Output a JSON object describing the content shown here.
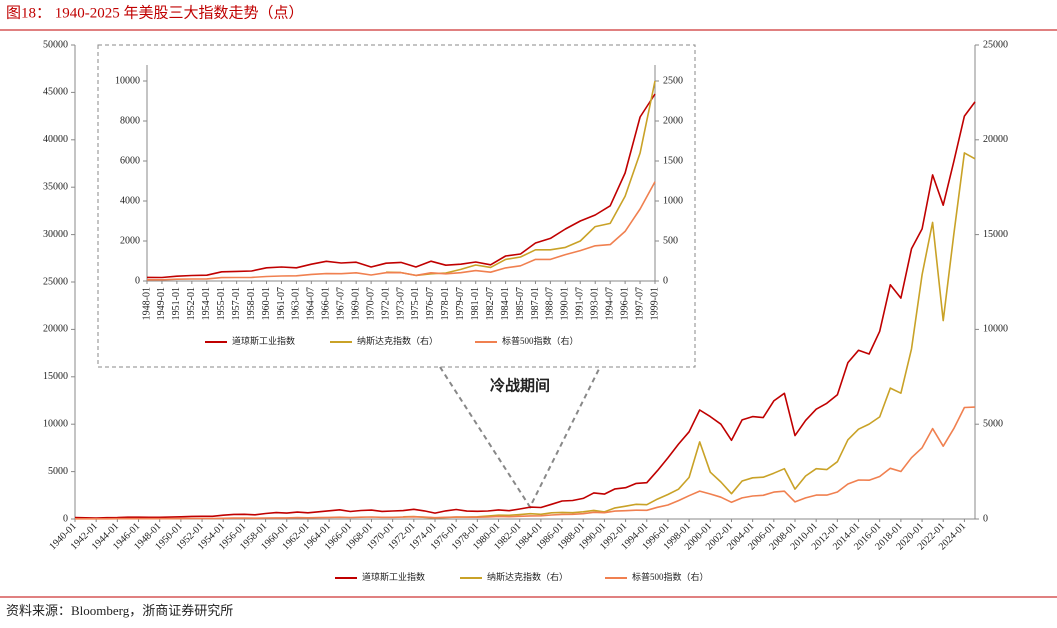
{
  "title": "图18： 1940-2025 年美股三大指数走势（点）",
  "source": "资料来源：Bloomberg，浙商证券研究所",
  "chart_data": [
    {
      "type": "line",
      "categories": [
        "1940-01",
        null,
        "1942-01",
        null,
        "1944-01",
        null,
        "1946-01",
        null,
        "1948-01",
        null,
        "1950-01",
        null,
        "1952-01",
        null,
        "1954-01",
        null,
        "1956-01",
        null,
        "1958-01",
        null,
        "1960-01",
        null,
        "1962-01",
        null,
        "1964-01",
        null,
        "1966-01",
        null,
        "1968-01",
        null,
        "1970-01",
        null,
        "1972-01",
        null,
        "1974-01",
        null,
        "1976-01",
        null,
        "1978-01",
        null,
        "1980-01",
        null,
        "1982-01",
        null,
        "1984-01",
        null,
        "1986-01",
        null,
        "1988-01",
        null,
        "1990-01",
        null,
        "1992-01",
        null,
        "1994-01",
        null,
        "1996-01",
        null,
        "1998-01",
        null,
        "2000-01",
        null,
        "2002-01",
        null,
        "2004-01",
        null,
        "2006-01",
        null,
        "2008-01",
        null,
        "2010-01",
        null,
        "2012-01",
        null,
        "2014-01",
        null,
        "2016-01",
        null,
        "2018-01",
        null,
        "2020-01",
        null,
        "2022-01",
        null,
        "2024-01",
        null
      ],
      "series": [
        {
          "name": "道琼斯工业指数",
          "color": "#c00000",
          "values": [
            150,
            130,
            110,
            135,
            150,
            190,
            190,
            180,
            180,
            200,
            235,
            270,
            290,
            280,
            400,
            490,
            500,
            440,
            580,
            670,
            620,
            730,
            650,
            760,
            870,
            970,
            790,
            900,
            940,
            800,
            840,
            890,
            1020,
            850,
            620,
            850,
            1000,
            830,
            810,
            840,
            960,
            880,
            1050,
            1260,
            1210,
            1550,
            1900,
            1950,
            2170,
            2750,
            2630,
            3170,
            3300,
            3750,
            3830,
            5100,
            6450,
            7900,
            9200,
            11500,
            10800,
            10000,
            8300,
            10450,
            10800,
            10700,
            12460,
            13260,
            8800,
            10400,
            11580,
            12200,
            13100,
            16500,
            17800,
            17400,
            19800,
            24700,
            23300,
            28500,
            30600,
            36300,
            33100,
            37700,
            42500,
            44000
          ]
        },
        {
          "name": "纳斯达克指数（右）",
          "color": "#c9a227",
          "axis": "y2",
          "values": [
            null,
            null,
            null,
            null,
            null,
            null,
            null,
            null,
            null,
            null,
            null,
            null,
            null,
            null,
            null,
            null,
            null,
            null,
            null,
            null,
            null,
            null,
            null,
            null,
            null,
            null,
            null,
            null,
            null,
            null,
            null,
            114,
            134,
            92,
            60,
            78,
            98,
            105,
            118,
            151,
            202,
            196,
            232,
            279,
            247,
            325,
            349,
            330,
            381,
            454,
            374,
            586,
            677,
            777,
            752,
            1052,
            1291,
            1570,
            2193,
            4069,
            2470,
            1950,
            1335,
            2003,
            2175,
            2205,
            2415,
            2652,
            1577,
            2269,
            2653,
            2605,
            3020,
            4177,
            4736,
            5007,
            5383,
            6903,
            6635,
            8973,
            12888,
            15645,
            10466,
            15011,
            19310,
            19000
          ]
        },
        {
          "name": "标普500指数（右）",
          "color": "#f08050",
          "axis": "y2",
          "values": [
            10.6,
            8.7,
            9.8,
            11.7,
            13.3,
            17.4,
            15.3,
            15.3,
            15.2,
            16.8,
            20.4,
            23.8,
            26.6,
            24.8,
            36,
            45.5,
            46.7,
            39.9,
            55.2,
            59.9,
            58.1,
            71.6,
            63.1,
            75,
            84.8,
            92.4,
            80.3,
            96.5,
            103.9,
            92.1,
            92.2,
            102,
            118,
            97.6,
            68.6,
            90.2,
            107,
            95,
            96,
            108,
            136,
            123,
            141,
            165,
            167,
            211,
            242,
            247,
            278,
            353,
            330,
            417,
            436,
            466,
            459,
            616,
            741,
            970,
            1229,
            1469,
            1320,
            1148,
            880,
            1112,
            1212,
            1248,
            1418,
            1468,
            903,
            1115,
            1258,
            1258,
            1426,
            1848,
            2059,
            2044,
            2239,
            2674,
            2507,
            3231,
            3756,
            4766,
            3840,
            4770,
            5882,
            5900
          ]
        }
      ],
      "ylim": [
        0,
        50000
      ],
      "yticks": [
        0,
        5000,
        10000,
        15000,
        20000,
        25000,
        30000,
        35000,
        40000,
        45000,
        50000
      ],
      "y2lim": [
        0,
        25000
      ],
      "y2ticks": [
        0,
        5000,
        10000,
        15000,
        20000,
        25000
      ]
    },
    {
      "type": "line",
      "annotation": "冷战期间",
      "categories": [
        "1948-01",
        "1949-01",
        "1951-01",
        "1952-01",
        "1954-01",
        "1955-01",
        "1957-01",
        "1958-01",
        "1960-01",
        "1961-07",
        "1963-01",
        "1964-07",
        "1966-01",
        "1967-07",
        "1969-01",
        "1970-07",
        "1972-01",
        "1973-07",
        "1975-01",
        "1976-07",
        "1978-01",
        "1979-07",
        "1981-01",
        "1982-07",
        "1984-01",
        "1985-07",
        "1987-01",
        "1988-07",
        "1990-01",
        "1991-07",
        "1993-01",
        "1994-07",
        "1996-01",
        "1997-07",
        "1999-01"
      ],
      "series": [
        {
          "name": "道琼斯工业指数",
          "color": "#c00000",
          "values": [
            180,
            175,
            240,
            275,
            290,
            460,
            480,
            500,
            660,
            700,
            660,
            840,
            985,
            900,
            940,
            700,
            890,
            930,
            700,
            990,
            790,
            840,
            950,
            810,
            1250,
            1350,
            1900,
            2130,
            2600,
            3000,
            3300,
            3760,
            5400,
            8200,
            9350
          ]
        },
        {
          "name": "纳斯达克指数（右）",
          "color": "#c9a227",
          "axis": "y2",
          "values": [
            null,
            null,
            null,
            null,
            null,
            null,
            null,
            null,
            null,
            null,
            null,
            null,
            null,
            null,
            null,
            null,
            110,
            105,
            70,
            90,
            100,
            145,
            200,
            170,
            270,
            300,
            390,
            390,
            420,
            500,
            680,
            720,
            1060,
            1600,
            2500
          ]
        },
        {
          "name": "标普500指数（右）",
          "color": "#f08050",
          "axis": "y2",
          "values": [
            15,
            15,
            22,
            25,
            26,
            42,
            44,
            45,
            56,
            63,
            65,
            82,
            92,
            91,
            103,
            75,
            104,
            105,
            70,
            103,
            90,
            104,
            130,
            110,
            164,
            190,
            270,
            270,
            330,
            380,
            440,
            455,
            620,
            900,
            1240
          ]
        }
      ],
      "ylim": [
        0,
        10800
      ],
      "yticks": [
        0,
        2000,
        4000,
        6000,
        8000,
        10000
      ],
      "y2lim": [
        0,
        2700
      ],
      "y2ticks": [
        0,
        500,
        1000,
        1500,
        2000,
        2500
      ]
    }
  ]
}
